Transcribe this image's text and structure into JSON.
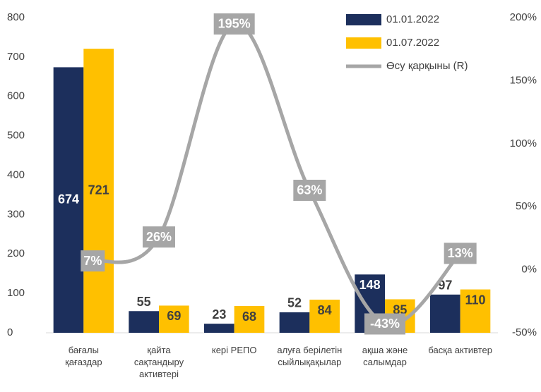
{
  "chart_data": {
    "type": "bar-line",
    "categories": [
      [
        "бағалы",
        "қағаздар"
      ],
      [
        "қайта",
        "сақтандыру",
        "активтері"
      ],
      [
        "кері РЕПО"
      ],
      [
        "алуға берілетін",
        "сыйлықақылар"
      ],
      [
        "ақша және",
        "салымдар"
      ],
      [
        "басқа активтер"
      ]
    ],
    "series": [
      {
        "name": "01.01.2022",
        "color": "#1c2f5c",
        "values": [
          674,
          55,
          23,
          52,
          148,
          97
        ]
      },
      {
        "name": "01.07.2022",
        "color": "#ffc000",
        "values": [
          721,
          69,
          68,
          84,
          85,
          110
        ]
      },
      {
        "name": "Өсу қарқыны (R)",
        "color": "#a6a6a6",
        "axis": "y2",
        "values": [
          7,
          26,
          195,
          63,
          -43,
          13
        ],
        "value_labels": [
          "7%",
          "26%",
          "195%",
          "63%",
          "-43%",
          "13%"
        ]
      }
    ],
    "ylim": [
      0,
      800
    ],
    "yticks": [
      0,
      100,
      200,
      300,
      400,
      500,
      600,
      700,
      800
    ],
    "y2lim": [
      -50,
      200
    ],
    "y2ticks": [
      {
        "value": -50,
        "label": "-50%"
      },
      {
        "value": 0,
        "label": "0%"
      },
      {
        "value": 50,
        "label": "50%"
      },
      {
        "value": 100,
        "label": "100%"
      },
      {
        "value": 150,
        "label": "150%"
      },
      {
        "value": 200,
        "label": "200%"
      }
    ],
    "legend": "top-right",
    "grid": false
  }
}
